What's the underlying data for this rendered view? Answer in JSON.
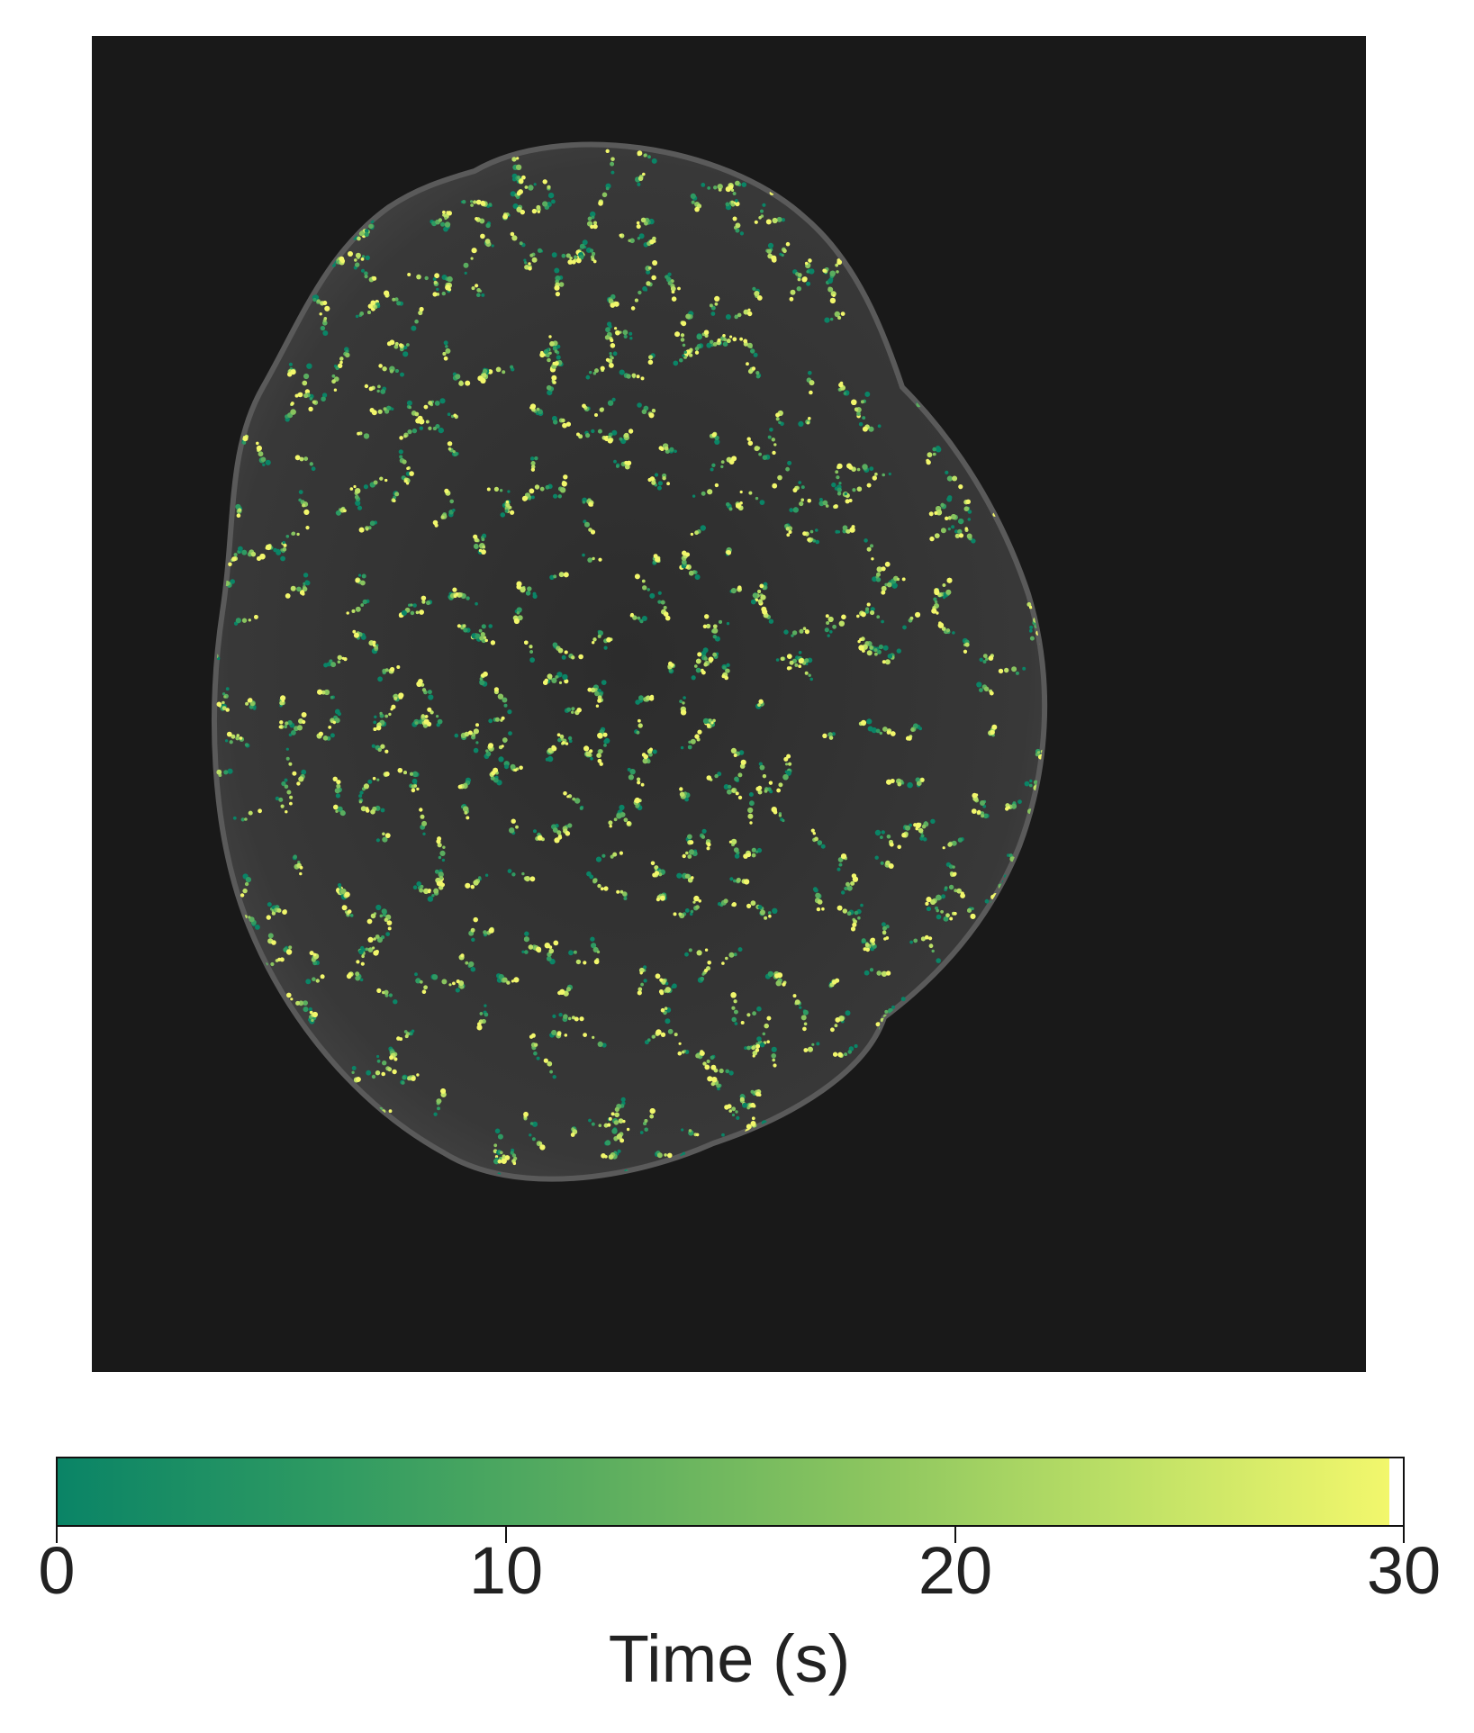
{
  "image": {
    "description_kind": "microscopy-overlay",
    "background_color": "#191919",
    "nucleus_fill_color": "#3a3a3a",
    "track_points_visible": true
  },
  "colorbar": {
    "label": "Time (s)",
    "min": 0,
    "max": 30,
    "ticks": [
      "0",
      "10",
      "20",
      "30"
    ],
    "colormap": [
      "#0a8466",
      "#2e9a62",
      "#5aad5f",
      "#89c45f",
      "#bde066",
      "#f2f76c",
      "#fbff6e"
    ]
  }
}
